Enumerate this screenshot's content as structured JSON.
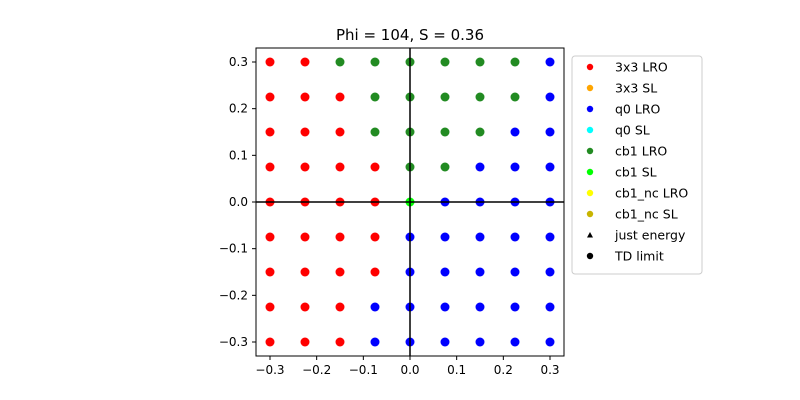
{
  "chart_data": {
    "type": "scatter",
    "title": "Phi = 104, S = 0.36",
    "xlabel": "",
    "ylabel": "",
    "xlim": [
      -0.33,
      0.33
    ],
    "ylim": [
      -0.33,
      0.33
    ],
    "xticks": [
      -0.3,
      -0.2,
      -0.1,
      0.0,
      0.1,
      0.2,
      0.3
    ],
    "xtick_labels": [
      "−0.3",
      "−0.2",
      "−0.1",
      "0.0",
      "0.1",
      "0.2",
      "0.3"
    ],
    "yticks": [
      0.3,
      0.2,
      0.1,
      0.0,
      -0.1,
      -0.2,
      -0.3
    ],
    "ytick_labels": [
      "0.3",
      "0.2",
      "0.1",
      "0.0",
      "−0.1",
      "−0.2",
      "−0.3"
    ],
    "grid": false,
    "axis_lines": true,
    "legend_position": "outside-right",
    "grid_values": [
      -0.3,
      -0.225,
      -0.15,
      -0.075,
      0.0,
      0.075,
      0.15,
      0.225,
      0.3
    ],
    "phase_rows_top_to_bottom": [
      [
        "3x3 LRO",
        "3x3 LRO",
        "cb1 LRO",
        "cb1 LRO",
        "cb1 LRO",
        "cb1 LRO",
        "cb1 LRO",
        "cb1 LRO",
        "q0 LRO"
      ],
      [
        "3x3 LRO",
        "3x3 LRO",
        "3x3 LRO",
        "cb1 LRO",
        "cb1 LRO",
        "cb1 LRO",
        "cb1 LRO",
        "cb1 LRO",
        "q0 LRO"
      ],
      [
        "3x3 LRO",
        "3x3 LRO",
        "3x3 LRO",
        "cb1 LRO",
        "cb1 LRO",
        "cb1 LRO",
        "cb1 LRO",
        "q0 LRO",
        "q0 LRO"
      ],
      [
        "3x3 LRO",
        "3x3 LRO",
        "3x3 LRO",
        "3x3 LRO",
        "cb1 LRO",
        "cb1 LRO",
        "q0 LRO",
        "q0 LRO",
        "q0 LRO"
      ],
      [
        "3x3 LRO",
        "3x3 LRO",
        "3x3 LRO",
        "3x3 LRO",
        "cb1 SL",
        "q0 LRO",
        "q0 LRO",
        "q0 LRO",
        "q0 LRO"
      ],
      [
        "3x3 LRO",
        "3x3 LRO",
        "3x3 LRO",
        "3x3 LRO",
        "q0 LRO",
        "q0 LRO",
        "q0 LRO",
        "q0 LRO",
        "q0 LRO"
      ],
      [
        "3x3 LRO",
        "3x3 LRO",
        "3x3 LRO",
        "3x3 LRO",
        "q0 LRO",
        "q0 LRO",
        "q0 LRO",
        "q0 LRO",
        "q0 LRO"
      ],
      [
        "3x3 LRO",
        "3x3 LRO",
        "3x3 LRO",
        "q0 LRO",
        "q0 LRO",
        "q0 LRO",
        "q0 LRO",
        "q0 LRO",
        "q0 LRO"
      ],
      [
        "3x3 LRO",
        "3x3 LRO",
        "3x3 LRO",
        "q0 LRO",
        "q0 LRO",
        "q0 LRO",
        "q0 LRO",
        "q0 LRO",
        "q0 LRO"
      ]
    ],
    "legend": [
      {
        "name": "3x3 LRO",
        "color": "#ff0000",
        "marker": "circle"
      },
      {
        "name": "3x3 SL",
        "color": "#ffa500",
        "marker": "circle"
      },
      {
        "name": "q0 LRO",
        "color": "#0000ff",
        "marker": "circle"
      },
      {
        "name": "q0 SL",
        "color": "#00ffff",
        "marker": "circle"
      },
      {
        "name": "cb1 LRO",
        "color": "#228b22",
        "marker": "circle"
      },
      {
        "name": "cb1 SL",
        "color": "#00ff00",
        "marker": "circle"
      },
      {
        "name": "cb1_nc LRO",
        "color": "#ffff00",
        "marker": "circle"
      },
      {
        "name": "cb1_nc SL",
        "color": "#c8b400",
        "marker": "circle"
      },
      {
        "name": "just energy",
        "color": "#000000",
        "marker": "triangle"
      },
      {
        "name": "TD limit",
        "color": "#000000",
        "marker": "circle"
      }
    ]
  }
}
